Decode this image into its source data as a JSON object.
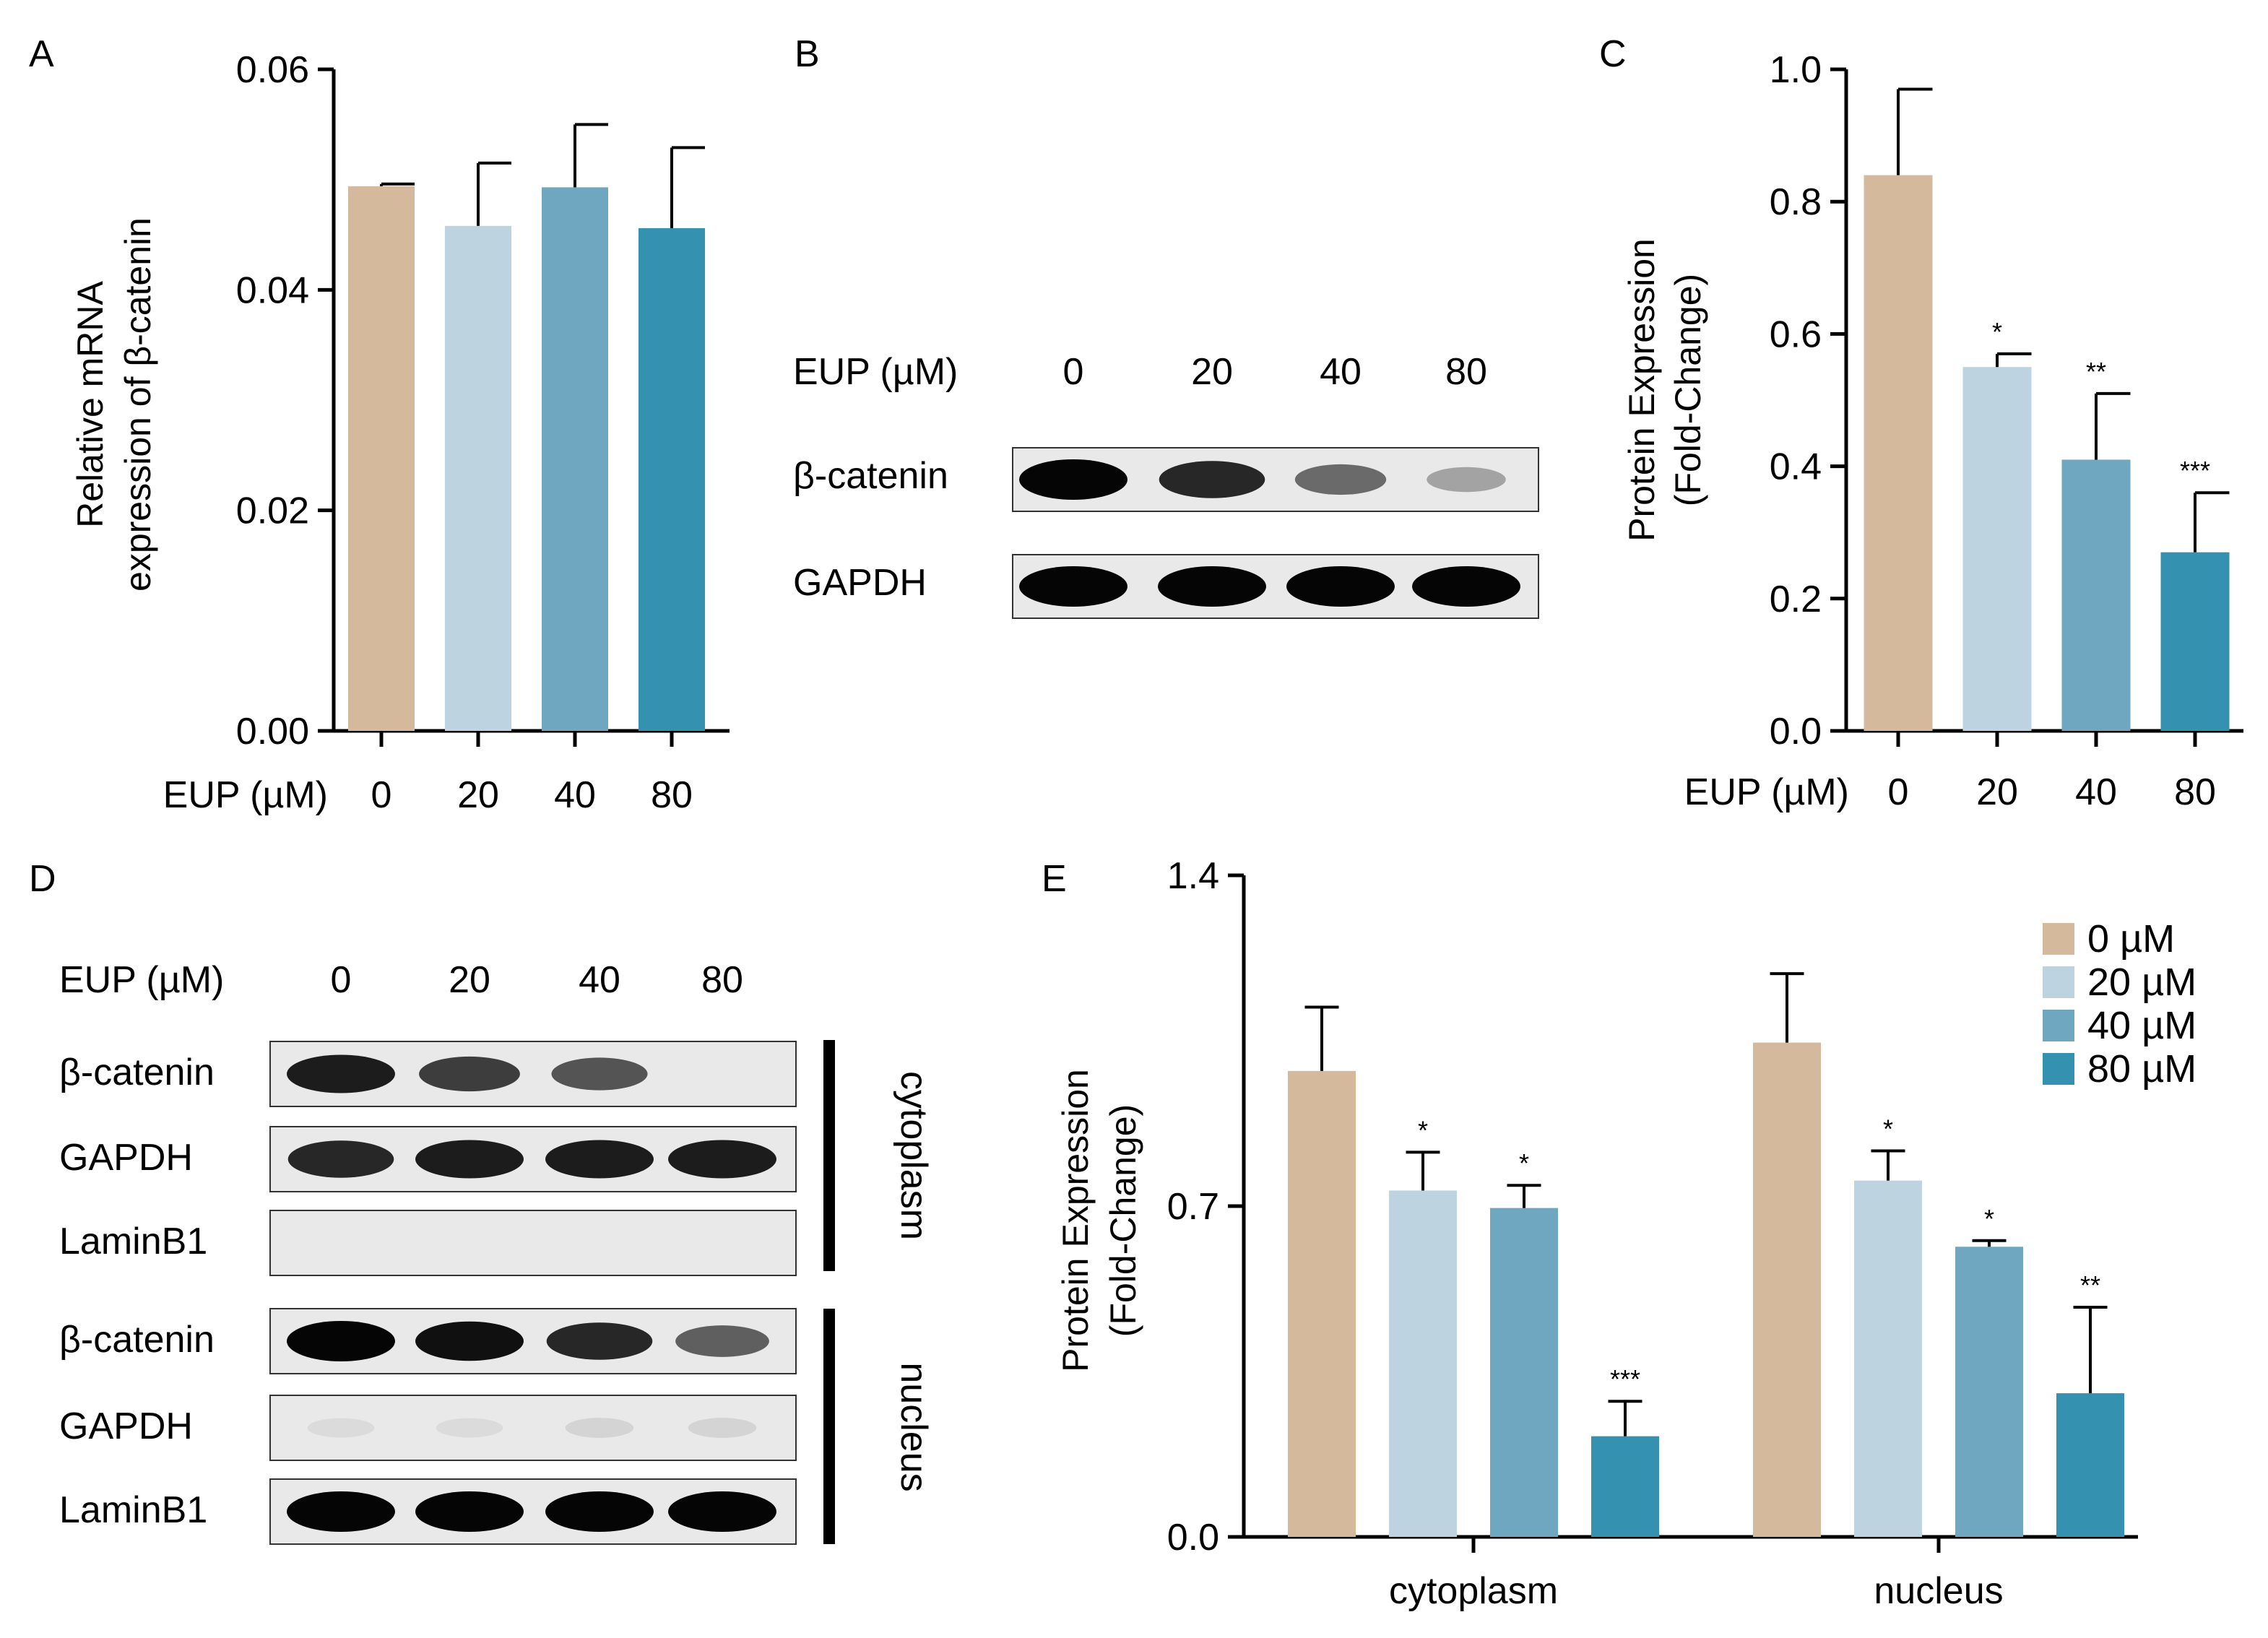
{
  "colors": {
    "c0": "#d4b99d",
    "c20": "#bdd4e0",
    "c40": "#6fa7c0",
    "c80": "#3491b0",
    "axis": "#000000"
  },
  "panels": {
    "A": {
      "letter": "A"
    },
    "B": {
      "letter": "B",
      "header_label": "EUP (µM)",
      "lanes": [
        "0",
        "20",
        "40",
        "80"
      ],
      "rows": [
        {
          "label": "β-catenin",
          "intensity": [
            1.0,
            0.85,
            0.55,
            0.3
          ]
        },
        {
          "label": "GAPDH",
          "intensity": [
            1.0,
            1.0,
            1.0,
            1.0
          ]
        }
      ]
    },
    "C": {
      "letter": "C"
    },
    "D": {
      "letter": "D",
      "header_label": "EUP (µM)",
      "lanes": [
        "0",
        "20",
        "40",
        "80"
      ],
      "group1_label": "cytoplasm",
      "group2_label": "nucleus",
      "rows": [
        {
          "label": "β-catenin",
          "intensity": [
            0.9,
            0.75,
            0.65,
            0.0
          ]
        },
        {
          "label": "GAPDH",
          "intensity": [
            0.85,
            0.9,
            0.9,
            0.9
          ]
        },
        {
          "label": "LaminB1",
          "intensity": [
            0.0,
            0.0,
            0.0,
            0.0
          ]
        },
        {
          "label": "β-catenin",
          "intensity": [
            1.0,
            0.95,
            0.85,
            0.6
          ]
        },
        {
          "label": "GAPDH",
          "intensity": [
            0.05,
            0.05,
            0.08,
            0.08
          ]
        },
        {
          "label": "LaminB1",
          "intensity": [
            1.0,
            1.0,
            1.0,
            1.0
          ]
        }
      ]
    },
    "E": {
      "letter": "E"
    }
  },
  "chart_data": [
    {
      "panel": "A",
      "type": "bar",
      "xlabel": "EUP (µM)",
      "ylabel_lines": [
        "Relative mRNA",
        "expression of β-catenin"
      ],
      "categories": [
        "0",
        "20",
        "40",
        "80"
      ],
      "values": [
        0.0494,
        0.0458,
        0.0493,
        0.0456
      ],
      "errors": [
        0.0002,
        0.0057,
        0.0057,
        0.0073
      ],
      "ylim": [
        0,
        0.06
      ],
      "yticks": [
        "0.00",
        "0.02",
        "0.04",
        "0.06"
      ],
      "ytick_values": [
        0,
        0.02,
        0.04,
        0.06
      ]
    },
    {
      "panel": "C",
      "type": "bar",
      "xlabel": "EUP (µM)",
      "ylabel_lines": [
        "Protein Expression",
        "(Fold-Change)"
      ],
      "categories": [
        "0",
        "20",
        "40",
        "80"
      ],
      "values": [
        0.84,
        0.55,
        0.41,
        0.27
      ],
      "errors": [
        0.13,
        0.02,
        0.1,
        0.09
      ],
      "significance": [
        "",
        "*",
        "**",
        "***"
      ],
      "ylim": [
        0,
        1.0
      ],
      "yticks": [
        "0.0",
        "0.2",
        "0.4",
        "0.6",
        "0.8",
        "1.0"
      ],
      "ytick_values": [
        0,
        0.2,
        0.4,
        0.6,
        0.8,
        1.0
      ]
    },
    {
      "panel": "E",
      "type": "bar",
      "ylabel_lines": [
        "Protein Expression",
        "(Fold-Change)"
      ],
      "categories": [
        "cytoplasm",
        "nucleus"
      ],
      "series": [
        {
          "name": "0  µM",
          "values": [
            0.986,
            1.046
          ],
          "errors": [
            0.135,
            0.146
          ],
          "significance": [
            "",
            ""
          ]
        },
        {
          "name": "20 µM",
          "values": [
            0.733,
            0.754
          ],
          "errors": [
            0.081,
            0.063
          ],
          "significance": [
            "*",
            "*"
          ]
        },
        {
          "name": "40 µM",
          "values": [
            0.696,
            0.614
          ],
          "errors": [
            0.048,
            0.013
          ],
          "significance": [
            "*",
            "*"
          ]
        },
        {
          "name": "80 µM",
          "values": [
            0.213,
            0.304
          ],
          "errors": [
            0.074,
            0.182
          ],
          "significance": [
            "***",
            "**"
          ]
        }
      ],
      "ylim": [
        0,
        1.4
      ],
      "yticks": [
        "0.0",
        "0.7",
        "1.4"
      ],
      "ytick_values": [
        0,
        0.7,
        1.4
      ],
      "legend_position": "top-right"
    }
  ]
}
